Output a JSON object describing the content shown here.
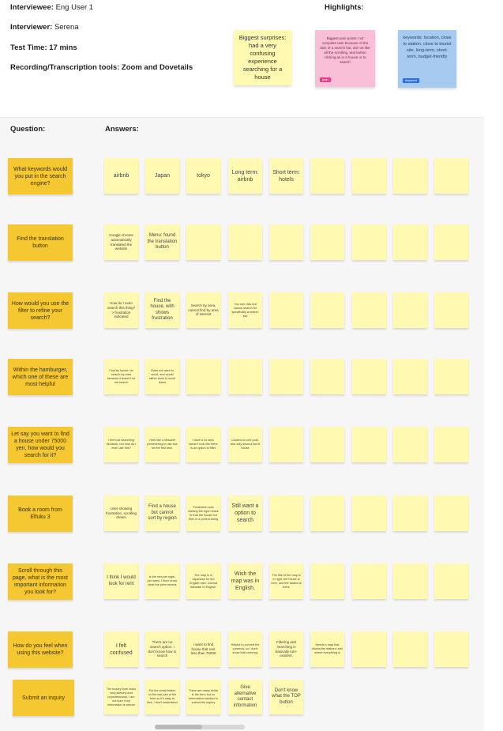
{
  "header": {
    "interviewee_label": "Interviewee:",
    "interviewee_value": "Eng User 1",
    "interviewer_label": "Interviewer:",
    "interviewer_value": "Serena",
    "test_time": "Test Time: 17 mins",
    "tools": "Recording/Transcription tools: Zoom and Dovetails",
    "highlights_label": "Highlights:"
  },
  "highlights": {
    "yellow": "Biggest surprises: had a very confusing experience searching for a house",
    "pink": "Biggest pain points: not complete task because of the lack of a search bar, did not like all the scrolling, and button clicking as in a house or to search",
    "pink_tag": "pain",
    "blue": "keywords: location, close to station, close to tourist site, long-term, short-term, budget-friendly",
    "blue_tag": "keyword"
  },
  "columns": {
    "question": "Question:",
    "answers": "Answers:"
  },
  "rows": [
    {
      "question": "What keywords would you put in the search engine?",
      "answers": [
        {
          "text": "airbnb",
          "size": "lg"
        },
        {
          "text": "Japan",
          "size": "lg"
        },
        {
          "text": "tokyo",
          "size": "lg"
        },
        {
          "text": "Long term: airbnb",
          "size": "lg"
        },
        {
          "text": "Short term: hotels",
          "size": "lg"
        },
        {
          "text": "",
          "size": "lg"
        },
        {
          "text": "",
          "size": "lg"
        },
        {
          "text": "",
          "size": "lg"
        },
        {
          "text": "",
          "size": "lg"
        }
      ]
    },
    {
      "question": "Find the translation button",
      "answers": [
        {
          "text": "Google chrome automatically translated the website",
          "size": "sm"
        },
        {
          "text": "Menu: found the translation button",
          "size": "md"
        },
        {
          "text": "",
          "size": "lg"
        },
        {
          "text": "",
          "size": "lg"
        },
        {
          "text": "",
          "size": "lg"
        },
        {
          "text": "",
          "size": "lg"
        },
        {
          "text": "",
          "size": "lg"
        },
        {
          "text": "",
          "size": "lg"
        },
        {
          "text": "",
          "size": "lg"
        }
      ]
    },
    {
      "question": "How would you use the filter to refine your search?",
      "answers": [
        {
          "text": "How do I even search this thing? > frustration indicated",
          "size": "sm"
        },
        {
          "text": "Find the house, with shows frustration",
          "size": "md"
        },
        {
          "text": "Search by area, cannot find by area of interest",
          "size": "sm"
        },
        {
          "text": "You can click but cannot search for specifically a search bar",
          "size": "xs"
        },
        {
          "text": "",
          "size": "lg"
        },
        {
          "text": "",
          "size": "lg"
        },
        {
          "text": "",
          "size": "lg"
        },
        {
          "text": "",
          "size": "lg"
        },
        {
          "text": "",
          "size": "lg"
        }
      ]
    },
    {
      "question": "Within the hamburger, which one of these are most helpful",
      "answers": [
        {
          "text": "Find by house: be search by area because it doesn't let me search",
          "size": "xs"
        },
        {
          "text": "Does not want to scroll, and would rather think to scroll down",
          "size": "xs"
        },
        {
          "text": "",
          "size": "lg"
        },
        {
          "text": "",
          "size": "lg"
        },
        {
          "text": "",
          "size": "lg"
        },
        {
          "text": "",
          "size": "lg"
        },
        {
          "text": "",
          "size": "lg"
        },
        {
          "text": "",
          "size": "lg"
        },
        {
          "text": "",
          "size": "lg"
        }
      ]
    },
    {
      "question": "Let say you want to find a house under 75000 yen, how would you search for it?",
      "answers": [
        {
          "text": "I feel lost searching because, but how do I even use this?",
          "size": "xs"
        },
        {
          "text": "I feel like a lifesaver persevering to use this for the first time.",
          "size": "xs"
        },
        {
          "text": "I have a no idea, doesn't look like there is an option to filter.",
          "size": "xs"
        },
        {
          "text": "Clicked on one post, and only show a list of house",
          "size": "xs"
        },
        {
          "text": "",
          "size": "lg"
        },
        {
          "text": "",
          "size": "lg"
        },
        {
          "text": "",
          "size": "lg"
        },
        {
          "text": "",
          "size": "lg"
        },
        {
          "text": "",
          "size": "lg"
        }
      ]
    },
    {
      "question": "Book a room from Elfuku 3",
      "answers": [
        {
          "text": "User showing frustration, scrolling dream",
          "size": "sm"
        },
        {
          "text": "Find a house but cannot sort by region",
          "size": "md"
        },
        {
          "text": "Frustration was clicking the right house to that the house but then is a control doing",
          "size": "xs"
        },
        {
          "text": "Still want a option to search",
          "size": "lg"
        },
        {
          "text": "",
          "size": "lg"
        },
        {
          "text": "",
          "size": "lg"
        },
        {
          "text": "",
          "size": "lg"
        },
        {
          "text": "",
          "size": "lg"
        },
        {
          "text": "",
          "size": "lg"
        }
      ]
    },
    {
      "question": "Scroll through this page, what is the most important information you look for?",
      "answers": [
        {
          "text": "I think I would look for rent",
          "size": "md"
        },
        {
          "text": "Is the rent per night, per week, I don't know what the price means",
          "size": "xs"
        },
        {
          "text": "The map is in Japanese for the English user. Cannot translate to English.",
          "size": "xs"
        },
        {
          "text": "Wish the map was in English.",
          "size": "lg"
        },
        {
          "text": "The title of the map is in right, the house is here, and the station is there",
          "size": "xs"
        },
        {
          "text": "",
          "size": "lg"
        },
        {
          "text": "",
          "size": "lg"
        },
        {
          "text": "",
          "size": "lg"
        },
        {
          "text": "",
          "size": "lg"
        }
      ]
    },
    {
      "question": "How do you feel when using this website?",
      "answers": [
        {
          "text": "I felt confused",
          "size": "lg"
        },
        {
          "text": "There are no search option. I don't know how to search",
          "size": "sm"
        },
        {
          "text": "I want to find house that rent less than 75000",
          "size": "sm"
        },
        {
          "text": "Helpful to convert the currency, so I don't know that currency",
          "size": "xs"
        },
        {
          "text": "Filtering and searching is basically non-existent.",
          "size": "sm"
        },
        {
          "text": "Needs a map that shows the stations and where everything is",
          "size": "xs"
        },
        {
          "text": "",
          "size": "lg"
        },
        {
          "text": "",
          "size": "lg"
        },
        {
          "text": "",
          "size": "lg"
        }
      ]
    },
    {
      "question": "Submit an inquiry",
      "answers": [
        {
          "text": "The inquiry form looks very sketchy and unprofessional, I am not sure if my information is secure",
          "size": "xs"
        },
        {
          "text": "Put the email button on the last part of the form so it's easy to find, I don't understand",
          "size": "xs"
        },
        {
          "text": "There are many fields in the form but no information needed to submit the inquiry",
          "size": "xs"
        },
        {
          "text": "Give alternative contact information",
          "size": "md"
        },
        {
          "text": "Don't know what the TOP button",
          "size": "md"
        }
      ]
    }
  ]
}
